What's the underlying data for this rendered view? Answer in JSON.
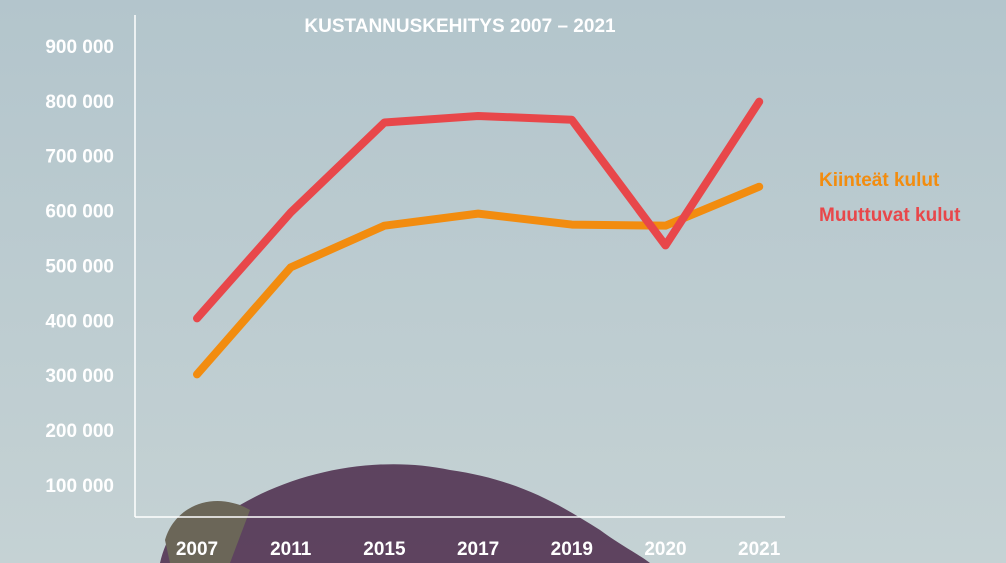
{
  "chart_data": {
    "type": "line",
    "title": "KUSTANNUSKEHITYS 2007 – 2021",
    "categories": [
      "2007",
      "2011",
      "2015",
      "2017",
      "2019",
      "2020",
      "2021"
    ],
    "series": [
      {
        "name": "Kiinteät kulut",
        "color": "#f28c0f",
        "values": [
          305000,
          500000,
          576000,
          598000,
          578000,
          576000,
          647000
        ]
      },
      {
        "name": "Muuttuvat kulut",
        "color": "#e8474a",
        "values": [
          407000,
          600000,
          764000,
          776000,
          769000,
          540000,
          802000
        ]
      }
    ],
    "ylim": [
      45000,
      960000
    ],
    "yticks": [
      {
        "value": 100000,
        "label": "100 000"
      },
      {
        "value": 200000,
        "label": "200 000"
      },
      {
        "value": 300000,
        "label": "300 000"
      },
      {
        "value": 400000,
        "label": "400 000"
      },
      {
        "value": 500000,
        "label": "500 000"
      },
      {
        "value": 600000,
        "label": "600 000"
      },
      {
        "value": 700000,
        "label": "700 000"
      },
      {
        "value": 800000,
        "label": "800 000"
      },
      {
        "value": 900000,
        "label": "900 000"
      }
    ],
    "legend": "right"
  }
}
